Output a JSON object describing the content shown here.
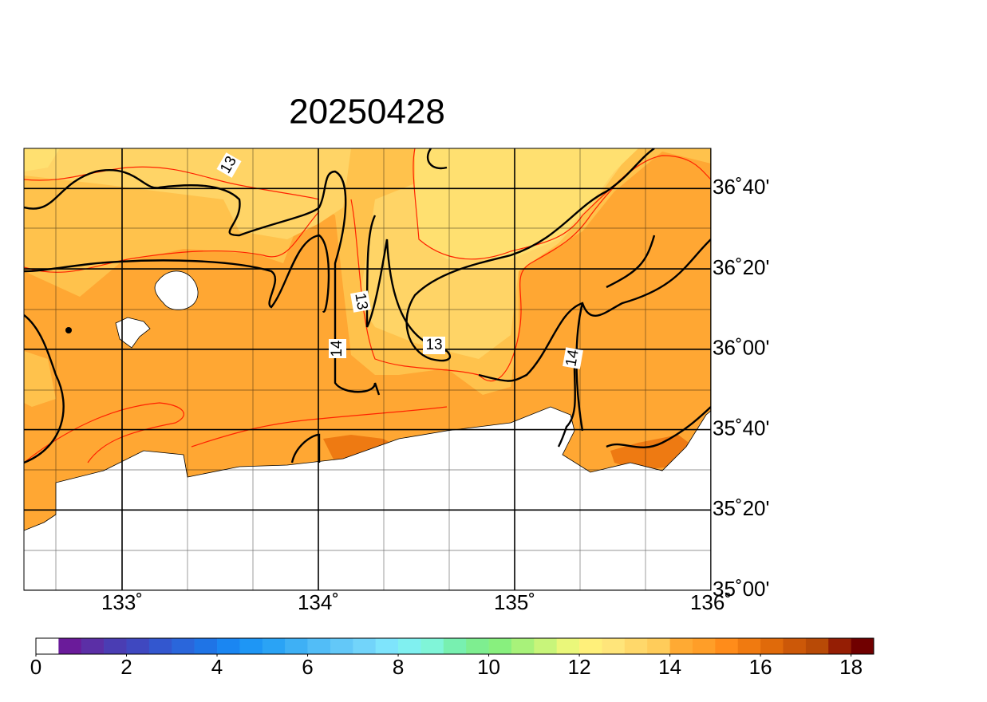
{
  "map": {
    "title": "20250428",
    "xlim": [
      132.5,
      136
    ],
    "ylim": [
      35,
      36.8333
    ],
    "lon_ticks": [
      {
        "value": 133,
        "label": "133˚"
      },
      {
        "value": 134,
        "label": "134˚"
      },
      {
        "value": 135,
        "label": "135˚"
      },
      {
        "value": 136,
        "label": "136˚"
      }
    ],
    "lat_ticks": [
      {
        "value": 35,
        "label": "35˚00'"
      },
      {
        "value": 35.3333,
        "label": "35˚20'"
      },
      {
        "value": 35.6667,
        "label": "35˚40'"
      },
      {
        "value": 36,
        "label": "36˚00'"
      },
      {
        "value": 36.3333,
        "label": "36˚20'"
      },
      {
        "value": 36.6667,
        "label": "36˚40'"
      }
    ],
    "contour_labels": [
      13,
      13,
      14,
      13,
      14
    ],
    "colorbar": {
      "range": [
        0,
        18.5
      ],
      "ticks": [
        0,
        2,
        4,
        6,
        8,
        10,
        12,
        14,
        16,
        18
      ],
      "colors": [
        "#ffffff",
        "#6a1b9a",
        "#5b2fa6",
        "#4a3db3",
        "#3f48c0",
        "#3357cf",
        "#2a66db",
        "#1f74e6",
        "#1a86f2",
        "#1e96f5",
        "#2aa3f5",
        "#3eb0f5",
        "#52bdf7",
        "#63c8f8",
        "#72d4fa",
        "#7ee4fc",
        "#80f0f0",
        "#80f5d8",
        "#78f0b0",
        "#7eee90",
        "#88f07e",
        "#a8f27a",
        "#c8f57a",
        "#eaf77a",
        "#fff07a",
        "#ffe57a",
        "#ffd86a",
        "#ffcc5a",
        "#ffaa33",
        "#ff9e28",
        "#ff8c1a",
        "#f07a10",
        "#e06a0a",
        "#cc5808",
        "#b84a06",
        "#951e04",
        "#700000"
      ]
    }
  }
}
